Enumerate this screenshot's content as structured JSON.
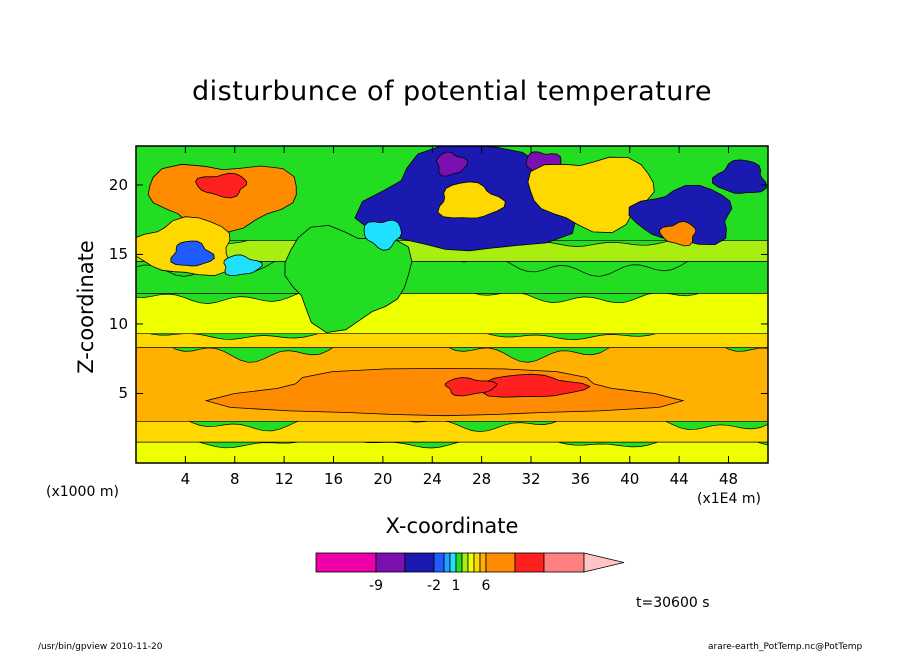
{
  "colors": {
    "band_-12": "#ee00a8",
    "band_-9": "#7a10b0",
    "band_-5": "#1a1ab0",
    "band_-2": "#1f5cff",
    "band_-1": "#1fa0ff",
    "band_0": "#20e0ff",
    "band_1": "#22dd22",
    "band_2": "#aaee11",
    "band_3": "#eeff00",
    "band_4": "#ffd800",
    "band_5": "#ffb000",
    "band_6": "#ff8c00",
    "band_9": "#ff2020",
    "band_12": "#ff8080",
    "band_over": "#ffc4c4"
  },
  "chart_data": {
    "type": "heatmap",
    "title": "disturbunce of potential temperature",
    "xlabel": "X-coordinate",
    "ylabel": "Z-coordinate",
    "x_unit": "(x1E4 m)",
    "y_unit": "(x1000 m)",
    "x_ticks": [
      4,
      8,
      12,
      16,
      20,
      24,
      28,
      32,
      36,
      40,
      44,
      48
    ],
    "y_ticks": [
      5,
      10,
      15,
      20
    ],
    "xlim": [
      0,
      51.2
    ],
    "ylim": [
      0,
      22.8
    ],
    "grid": false,
    "time_label": "t=30600 s",
    "colorbar": {
      "levels": [
        -12,
        -9,
        -5,
        -2,
        -1,
        0,
        1,
        2,
        3,
        4,
        5,
        6,
        9,
        12
      ],
      "tick_labels": [
        {
          "text": "-9",
          "value": -9
        },
        {
          "text": "-2",
          "value": -2
        },
        {
          "text": "1",
          "value": 1
        },
        {
          "text": "6",
          "value": 6
        }
      ],
      "extend": "max"
    },
    "layers": [
      {
        "z_from": 0,
        "z_to": 1.5,
        "value": 3
      },
      {
        "z_from": 1.5,
        "z_to": 3.0,
        "value": 4
      },
      {
        "z_from": 3.0,
        "z_to": 8.3,
        "value": 5
      },
      {
        "z_from": 8.3,
        "z_to": 9.3,
        "value": 4
      },
      {
        "z_from": 9.3,
        "z_to": 12.2,
        "value": 3
      },
      {
        "z_from": 12.2,
        "z_to": 14.5,
        "value": 1
      },
      {
        "z_from": 14.5,
        "z_to": 16.0,
        "value": 2
      },
      {
        "z_from": 16.0,
        "z_to": 22.8,
        "value": 1
      }
    ],
    "features": [
      {
        "x": 25,
        "z": 5.0,
        "rx": 17,
        "rz": 1.7,
        "value": 6
      },
      {
        "x": 32,
        "z": 5.5,
        "rx": 4,
        "rz": 0.8,
        "value": 9
      },
      {
        "x": 27,
        "z": 5.5,
        "rx": 2,
        "rz": 0.6,
        "value": 9
      },
      {
        "x": 7,
        "z": 19.3,
        "rx": 6,
        "rz": 2.3,
        "value": 6
      },
      {
        "x": 7,
        "z": 20.0,
        "rx": 2,
        "rz": 0.8,
        "value": 9
      },
      {
        "x": 4,
        "z": 15.5,
        "rx": 4,
        "rz": 2.0,
        "value": 4
      },
      {
        "x": 27,
        "z": 18.8,
        "rx": 8,
        "rz": 3.8,
        "value": -5
      },
      {
        "x": 27,
        "z": 18.8,
        "rx": 2.5,
        "rz": 1.3,
        "value": 4
      },
      {
        "x": 25.5,
        "z": 21.5,
        "rx": 1.2,
        "rz": 0.8,
        "value": -9
      },
      {
        "x": 33,
        "z": 21.5,
        "rx": 1.4,
        "rz": 0.9,
        "value": -9
      },
      {
        "x": 37,
        "z": 19.5,
        "rx": 5,
        "rz": 2.5,
        "value": 4
      },
      {
        "x": 44.5,
        "z": 17.8,
        "rx": 4,
        "rz": 2.0,
        "value": -5
      },
      {
        "x": 49,
        "z": 20.5,
        "rx": 2,
        "rz": 1.2,
        "value": -5
      },
      {
        "x": 4.5,
        "z": 15.0,
        "rx": 1.6,
        "rz": 0.9,
        "value": -2
      },
      {
        "x": 8.5,
        "z": 14.2,
        "rx": 1.5,
        "rz": 0.7,
        "value": 0
      },
      {
        "x": 17,
        "z": 13.5,
        "rx": 5,
        "rz": 3.5,
        "value": 1
      },
      {
        "x": 20,
        "z": 16.5,
        "rx": 1.5,
        "rz": 1.0,
        "value": 0
      },
      {
        "x": 44,
        "z": 16.5,
        "rx": 1.4,
        "rz": 0.8,
        "value": 6
      }
    ]
  },
  "footer": {
    "left": "/usr/bin/gpview   2010-11-20",
    "right": "arare-earth_PotTemp.nc@PotTemp"
  }
}
